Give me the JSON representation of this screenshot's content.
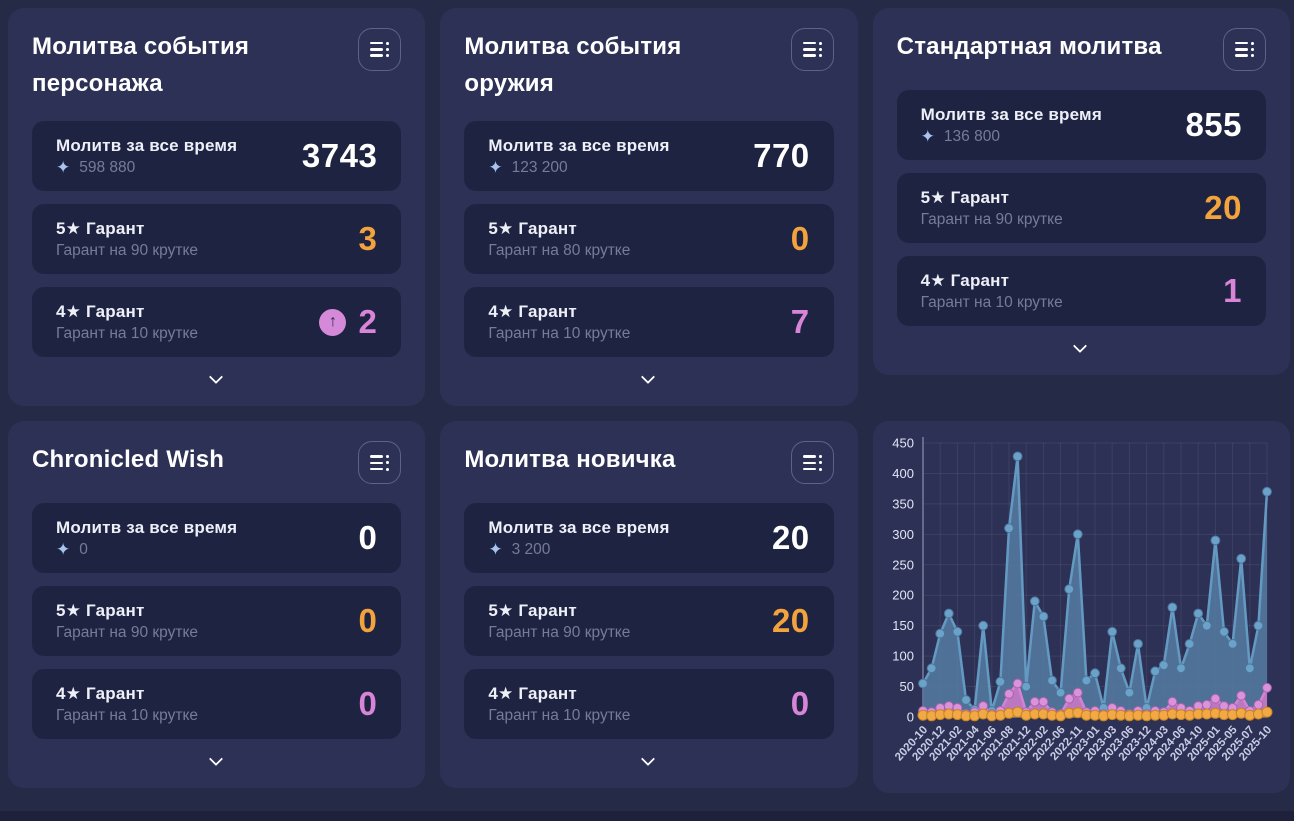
{
  "icons": {
    "primogem": "✦",
    "up_arrow": "↑",
    "menu": "list-menu",
    "chevron": "expand-more"
  },
  "colors": {
    "page_bg": "#252a46",
    "panel_bg": "#2d3156",
    "card_bg": "#1f2342",
    "value_white": "#ffffff",
    "value_orange": "#f3a33c",
    "value_pink": "#d885d8",
    "primogem_blue": "#a6c4f0",
    "badge_pink": "#d48ad9"
  },
  "panels": [
    {
      "title": "Молитва события персонажа",
      "cards": [
        {
          "label": "Молитв за все время",
          "sub": "598 880",
          "value": "3743"
        },
        {
          "label": "5★ Гарант",
          "sub": "Гарант на 90 крутке",
          "value": "3"
        },
        {
          "label": "4★ Гарант",
          "sub": "Гарант на 10 крутке",
          "value": "2",
          "badge": "up-arrow"
        }
      ]
    },
    {
      "title": "Молитва события оружия",
      "cards": [
        {
          "label": "Молитв за все время",
          "sub": "123 200",
          "value": "770"
        },
        {
          "label": "5★ Гарант",
          "sub": "Гарант на 80 крутке",
          "value": "0"
        },
        {
          "label": "4★ Гарант",
          "sub": "Гарант на 10 крутке",
          "value": "7"
        }
      ]
    },
    {
      "title": "Стандартная молитва",
      "cards": [
        {
          "label": "Молитв за все время",
          "sub": "136 800",
          "value": "855"
        },
        {
          "label": "5★ Гарант",
          "sub": "Гарант на 90 крутке",
          "value": "20"
        },
        {
          "label": "4★ Гарант",
          "sub": "Гарант на 10 крутке",
          "value": "1"
        }
      ]
    },
    {
      "title": "Chronicled Wish",
      "cards": [
        {
          "label": "Молитв за все время",
          "sub": "0",
          "value": "0"
        },
        {
          "label": "5★ Гарант",
          "sub": "Гарант на 90 крутке",
          "value": "0"
        },
        {
          "label": "4★ Гарант",
          "sub": "Гарант на 10 крутке",
          "value": "0"
        }
      ]
    },
    {
      "title": "Молитва новичка",
      "cards": [
        {
          "label": "Молитв за все время",
          "sub": "3 200",
          "value": "20"
        },
        {
          "label": "5★ Гарант",
          "sub": "Гарант на 90 крутке",
          "value": "20"
        },
        {
          "label": "4★ Гарант",
          "sub": "Гарант на 10 крутке",
          "value": "0"
        }
      ]
    }
  ],
  "chart_data": {
    "type": "area",
    "title": "",
    "xlabel": "",
    "ylabel": "",
    "ylim": [
      0,
      450
    ],
    "yticks": [
      0,
      50,
      100,
      150,
      200,
      250,
      300,
      350,
      400,
      450
    ],
    "grid": true,
    "legend": "none",
    "points_count": 41,
    "tick_every": 2,
    "tick_labels": [
      "2020-10",
      "2020-12",
      "2021-02",
      "2021-04",
      "2021-06",
      "2021-08",
      "2021-12",
      "2022-02",
      "2022-06",
      "2022-11",
      "2023-01",
      "2023-03",
      "2023-06",
      "2023-12",
      "2024-03",
      "2024-06",
      "2024-10",
      "2025-01",
      "2025-05",
      "2025-07",
      "2025-10"
    ],
    "series": [
      {
        "name": "wishes-per-month",
        "line": "#649ac2",
        "marker": "#6ba2c9",
        "marker_ring": "#4d759a",
        "fill": "#53799e",
        "fill_opacity": 0.9,
        "marker_r": 4.4,
        "values": [
          55,
          80,
          137,
          170,
          140,
          28,
          12,
          150,
          10,
          58,
          310,
          428,
          50,
          190,
          165,
          60,
          40,
          210,
          300,
          60,
          72,
          15,
          140,
          80,
          40,
          120,
          15,
          75,
          85,
          180,
          80,
          120,
          170,
          150,
          290,
          140,
          120,
          260,
          80,
          150,
          370
        ]
      },
      {
        "name": "four-star-per-month",
        "line": "#d383d2",
        "marker": "#da92da",
        "marker_ring": "#a863ab",
        "fill": "#c177c4",
        "fill_opacity": 0.95,
        "marker_r": 4.4,
        "values": [
          10,
          8,
          15,
          18,
          15,
          5,
          8,
          18,
          5,
          10,
          38,
          55,
          8,
          25,
          25,
          8,
          5,
          30,
          40,
          8,
          10,
          5,
          15,
          10,
          5,
          10,
          5,
          10,
          8,
          25,
          15,
          10,
          18,
          20,
          30,
          18,
          15,
          35,
          10,
          20,
          48
        ]
      },
      {
        "name": "five-star-per-month",
        "line": "#ec9f35",
        "marker": "#f2a945",
        "marker_ring": "#c8851f",
        "fill": "#ec9f35",
        "fill_opacity": 1,
        "marker_r": 5,
        "values": [
          3,
          2,
          4,
          5,
          4,
          2,
          2,
          5,
          2,
          3,
          6,
          8,
          3,
          5,
          5,
          3,
          2,
          6,
          7,
          3,
          3,
          2,
          4,
          3,
          2,
          3,
          2,
          3,
          3,
          5,
          4,
          3,
          5,
          5,
          6,
          4,
          4,
          6,
          3,
          5,
          8
        ]
      }
    ]
  }
}
